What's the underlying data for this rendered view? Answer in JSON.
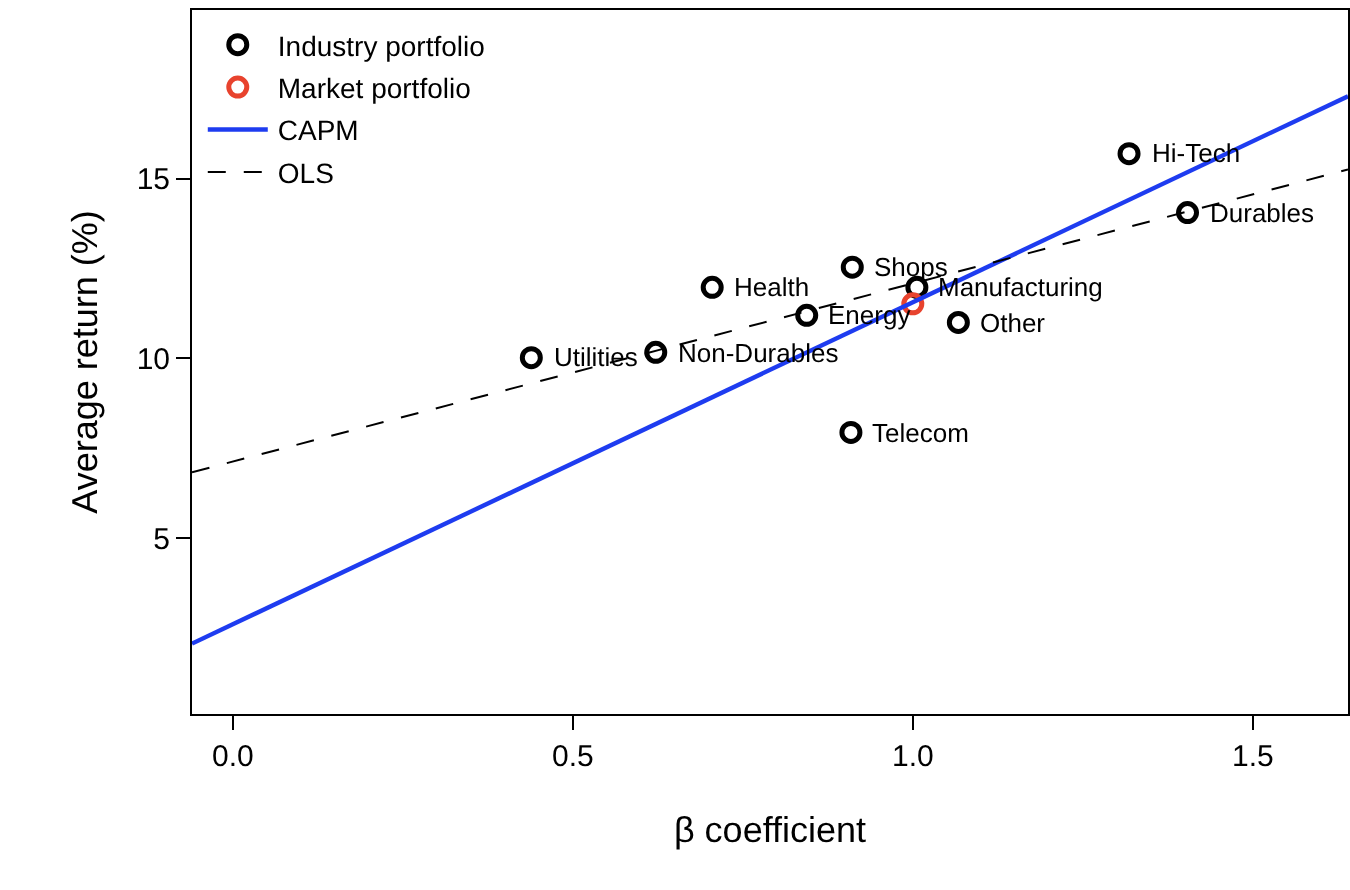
{
  "chart_data": {
    "type": "scatter",
    "xlabel": "β coefficient",
    "ylabel": "Average return (%)",
    "xlim": [
      -0.06,
      1.64
    ],
    "ylim": [
      0.1,
      19.7
    ],
    "xticks": [
      {
        "value": 0,
        "label": "0.0"
      },
      {
        "value": 0.5,
        "label": "0.5"
      },
      {
        "value": 1,
        "label": "1.0"
      },
      {
        "value": 1.5,
        "label": "1.5"
      }
    ],
    "yticks": [
      5,
      10,
      15
    ],
    "grid": false,
    "legend": "top left",
    "series": [
      {
        "name": "Industry portfolio",
        "marker": "circle",
        "color": "#000000",
        "x": [
          1.318,
          1.404,
          0.911,
          0.705,
          1.006,
          0.844,
          1.067,
          0.439,
          0.622,
          0.909
        ],
        "values": [
          15.7,
          14.06,
          12.54,
          11.98,
          11.98,
          11.2,
          11.0,
          10.02,
          10.17,
          7.94
        ]
      },
      {
        "name": "Market portfolio",
        "marker": "circle",
        "color": "#e8432e",
        "x": [
          1.0
        ],
        "values": [
          11.52
        ]
      },
      {
        "name": "CAPM",
        "type": "line",
        "marker": "none",
        "color": "#1e3cf0",
        "line_style": "solid",
        "x": [
          -0.06,
          1.64
        ],
        "values": [
          2.06,
          17.3
        ]
      },
      {
        "name": "OLS",
        "type": "line",
        "marker": "none",
        "color": "#000000",
        "line_style": "dashed",
        "x": [
          -0.06,
          1.64
        ],
        "values": [
          6.83,
          15.26
        ]
      }
    ],
    "annotations": [
      {
        "text": "Hi-Tech",
        "x": 1.318,
        "y": 15.7
      },
      {
        "text": "Durables",
        "x": 1.404,
        "y": 14.06
      },
      {
        "text": "Shops",
        "x": 0.911,
        "y": 12.54
      },
      {
        "text": "Health",
        "x": 0.705,
        "y": 11.98
      },
      {
        "text": "Manufacturing",
        "x": 1.006,
        "y": 11.98
      },
      {
        "text": "Energy",
        "x": 0.844,
        "y": 11.2
      },
      {
        "text": "Other",
        "x": 1.067,
        "y": 11.0
      },
      {
        "text": "Utilities",
        "x": 0.439,
        "y": 10.02
      },
      {
        "text": "Non-Durables",
        "x": 0.622,
        "y": 10.17
      },
      {
        "text": "Telecom",
        "x": 0.909,
        "y": 7.94
      }
    ]
  }
}
